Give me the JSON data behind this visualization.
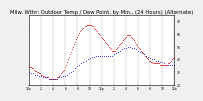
{
  "title": "Milw. Wthr: Outdoor Temp / Dew Point, by Min., (24 Hours) (Alternate)",
  "title_fontsize": 3.8,
  "background_color": "#f0f0f0",
  "plot_bg_color": "#ffffff",
  "grid_color": "#888888",
  "ylim": [
    20,
    75
  ],
  "xlim": [
    0,
    1440
  ],
  "temp_color": "#cc0000",
  "dew_color": "#0000cc",
  "temp_data": [
    [
      0,
      35
    ],
    [
      10,
      34
    ],
    [
      20,
      34
    ],
    [
      30,
      33
    ],
    [
      40,
      33
    ],
    [
      50,
      32
    ],
    [
      60,
      31
    ],
    [
      70,
      31
    ],
    [
      80,
      30
    ],
    [
      90,
      30
    ],
    [
      100,
      29
    ],
    [
      110,
      29
    ],
    [
      120,
      28
    ],
    [
      130,
      28
    ],
    [
      140,
      27
    ],
    [
      150,
      27
    ],
    [
      160,
      26
    ],
    [
      170,
      26
    ],
    [
      180,
      26
    ],
    [
      190,
      26
    ],
    [
      200,
      25
    ],
    [
      210,
      25
    ],
    [
      220,
      25
    ],
    [
      230,
      25
    ],
    [
      240,
      25
    ],
    [
      250,
      25
    ],
    [
      260,
      25
    ],
    [
      270,
      25
    ],
    [
      280,
      26
    ],
    [
      290,
      26
    ],
    [
      300,
      27
    ],
    [
      310,
      28
    ],
    [
      320,
      29
    ],
    [
      330,
      30
    ],
    [
      340,
      31
    ],
    [
      350,
      32
    ],
    [
      360,
      34
    ],
    [
      370,
      36
    ],
    [
      380,
      38
    ],
    [
      390,
      40
    ],
    [
      400,
      42
    ],
    [
      410,
      44
    ],
    [
      420,
      46
    ],
    [
      430,
      48
    ],
    [
      440,
      50
    ],
    [
      450,
      52
    ],
    [
      460,
      54
    ],
    [
      470,
      56
    ],
    [
      480,
      58
    ],
    [
      490,
      59
    ],
    [
      500,
      61
    ],
    [
      510,
      62
    ],
    [
      520,
      63
    ],
    [
      530,
      64
    ],
    [
      540,
      65
    ],
    [
      550,
      66
    ],
    [
      560,
      66
    ],
    [
      570,
      67
    ],
    [
      580,
      67
    ],
    [
      590,
      67
    ],
    [
      600,
      67
    ],
    [
      610,
      67
    ],
    [
      620,
      66
    ],
    [
      630,
      66
    ],
    [
      640,
      65
    ],
    [
      650,
      64
    ],
    [
      660,
      63
    ],
    [
      670,
      62
    ],
    [
      680,
      61
    ],
    [
      690,
      60
    ],
    [
      700,
      59
    ],
    [
      710,
      58
    ],
    [
      720,
      57
    ],
    [
      730,
      56
    ],
    [
      740,
      55
    ],
    [
      750,
      54
    ],
    [
      760,
      53
    ],
    [
      770,
      52
    ],
    [
      780,
      51
    ],
    [
      790,
      50
    ],
    [
      800,
      49
    ],
    [
      810,
      48
    ],
    [
      820,
      47
    ],
    [
      830,
      47
    ],
    [
      840,
      47
    ],
    [
      850,
      47
    ],
    [
      860,
      48
    ],
    [
      870,
      49
    ],
    [
      880,
      50
    ],
    [
      890,
      51
    ],
    [
      900,
      52
    ],
    [
      910,
      53
    ],
    [
      920,
      54
    ],
    [
      930,
      55
    ],
    [
      940,
      56
    ],
    [
      950,
      57
    ],
    [
      960,
      58
    ],
    [
      970,
      59
    ],
    [
      980,
      59
    ],
    [
      990,
      59
    ],
    [
      1000,
      59
    ],
    [
      1010,
      58
    ],
    [
      1020,
      57
    ],
    [
      1030,
      56
    ],
    [
      1040,
      55
    ],
    [
      1050,
      54
    ],
    [
      1060,
      52
    ],
    [
      1070,
      51
    ],
    [
      1080,
      50
    ],
    [
      1090,
      49
    ],
    [
      1100,
      48
    ],
    [
      1110,
      47
    ],
    [
      1120,
      46
    ],
    [
      1130,
      45
    ],
    [
      1140,
      44
    ],
    [
      1150,
      43
    ],
    [
      1160,
      42
    ],
    [
      1170,
      41
    ],
    [
      1180,
      40
    ],
    [
      1190,
      39
    ],
    [
      1200,
      39
    ],
    [
      1210,
      38
    ],
    [
      1220,
      38
    ],
    [
      1230,
      37
    ],
    [
      1240,
      37
    ],
    [
      1250,
      37
    ],
    [
      1260,
      37
    ],
    [
      1270,
      37
    ],
    [
      1280,
      37
    ],
    [
      1290,
      37
    ],
    [
      1300,
      36
    ],
    [
      1310,
      36
    ],
    [
      1320,
      36
    ],
    [
      1330,
      36
    ],
    [
      1340,
      36
    ],
    [
      1350,
      36
    ],
    [
      1360,
      36
    ],
    [
      1370,
      36
    ],
    [
      1380,
      37
    ],
    [
      1390,
      37
    ],
    [
      1400,
      38
    ],
    [
      1410,
      39
    ],
    [
      1420,
      40
    ],
    [
      1430,
      41
    ],
    [
      1440,
      42
    ]
  ],
  "dew_data": [
    [
      0,
      30
    ],
    [
      20,
      29
    ],
    [
      40,
      29
    ],
    [
      60,
      28
    ],
    [
      80,
      28
    ],
    [
      100,
      27
    ],
    [
      120,
      27
    ],
    [
      140,
      26
    ],
    [
      160,
      26
    ],
    [
      180,
      26
    ],
    [
      200,
      25
    ],
    [
      220,
      25
    ],
    [
      240,
      25
    ],
    [
      260,
      25
    ],
    [
      280,
      25
    ],
    [
      300,
      26
    ],
    [
      320,
      26
    ],
    [
      340,
      27
    ],
    [
      360,
      27
    ],
    [
      380,
      28
    ],
    [
      400,
      29
    ],
    [
      420,
      30
    ],
    [
      440,
      31
    ],
    [
      460,
      33
    ],
    [
      480,
      35
    ],
    [
      500,
      36
    ],
    [
      520,
      37
    ],
    [
      540,
      38
    ],
    [
      560,
      39
    ],
    [
      580,
      40
    ],
    [
      600,
      41
    ],
    [
      620,
      42
    ],
    [
      640,
      42
    ],
    [
      660,
      43
    ],
    [
      680,
      43
    ],
    [
      700,
      43
    ],
    [
      720,
      43
    ],
    [
      740,
      43
    ],
    [
      760,
      43
    ],
    [
      780,
      43
    ],
    [
      800,
      43
    ],
    [
      820,
      43
    ],
    [
      840,
      44
    ],
    [
      860,
      45
    ],
    [
      880,
      46
    ],
    [
      900,
      47
    ],
    [
      920,
      48
    ],
    [
      940,
      49
    ],
    [
      960,
      49
    ],
    [
      980,
      50
    ],
    [
      1000,
      50
    ],
    [
      1020,
      49
    ],
    [
      1040,
      49
    ],
    [
      1060,
      48
    ],
    [
      1080,
      47
    ],
    [
      1100,
      46
    ],
    [
      1120,
      45
    ],
    [
      1140,
      44
    ],
    [
      1160,
      43
    ],
    [
      1180,
      42
    ],
    [
      1200,
      41
    ],
    [
      1220,
      40
    ],
    [
      1240,
      40
    ],
    [
      1260,
      39
    ],
    [
      1280,
      39
    ],
    [
      1300,
      38
    ],
    [
      1320,
      38
    ],
    [
      1340,
      37
    ],
    [
      1360,
      36
    ],
    [
      1380,
      36
    ],
    [
      1400,
      36
    ],
    [
      1420,
      36
    ],
    [
      1440,
      36
    ]
  ],
  "xtick_positions": [
    0,
    120,
    240,
    360,
    480,
    600,
    720,
    840,
    960,
    1080,
    1200,
    1320,
    1440
  ],
  "xtick_labels": [
    "12a",
    "2",
    "4",
    "6",
    "8",
    "10",
    "12p",
    "2",
    "4",
    "6",
    "8",
    "10",
    "12a"
  ],
  "ytick_positions": [
    20,
    30,
    40,
    50,
    60,
    70
  ],
  "ytick_labels": [
    "20",
    "30",
    "40",
    "50",
    "60",
    "70"
  ]
}
